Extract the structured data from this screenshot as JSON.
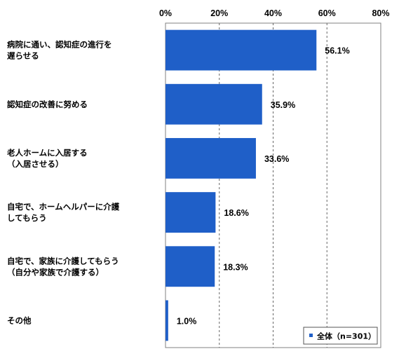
{
  "chart_data": {
    "type": "bar",
    "orientation": "horizontal",
    "categories": [
      [
        "病院に通い、認知症の進行を",
        "遅らせる"
      ],
      [
        "認知症の改善に努める"
      ],
      [
        "老人ホームに入居する",
        "（入居させる）"
      ],
      [
        "自宅で、ホームヘルパーに介護",
        "してもらう"
      ],
      [
        "自宅で、家族に介護してもらう",
        "（自分や家族で介護する）"
      ],
      [
        "その他"
      ]
    ],
    "series": [
      {
        "name": "全体（n=301）",
        "values": [
          56.1,
          35.9,
          33.6,
          18.6,
          18.3,
          1.0
        ]
      }
    ],
    "value_labels": [
      "56.1%",
      "35.9%",
      "33.6%",
      "18.6%",
      "18.3%",
      "1.0%"
    ],
    "xlim": [
      0,
      80
    ],
    "tick_labels": [
      "0%",
      "20%",
      "40%",
      "60%",
      "80%"
    ],
    "grid": "vertical dashed",
    "legend_position": "bottom-right",
    "bar_color": "#1f5fc8"
  }
}
